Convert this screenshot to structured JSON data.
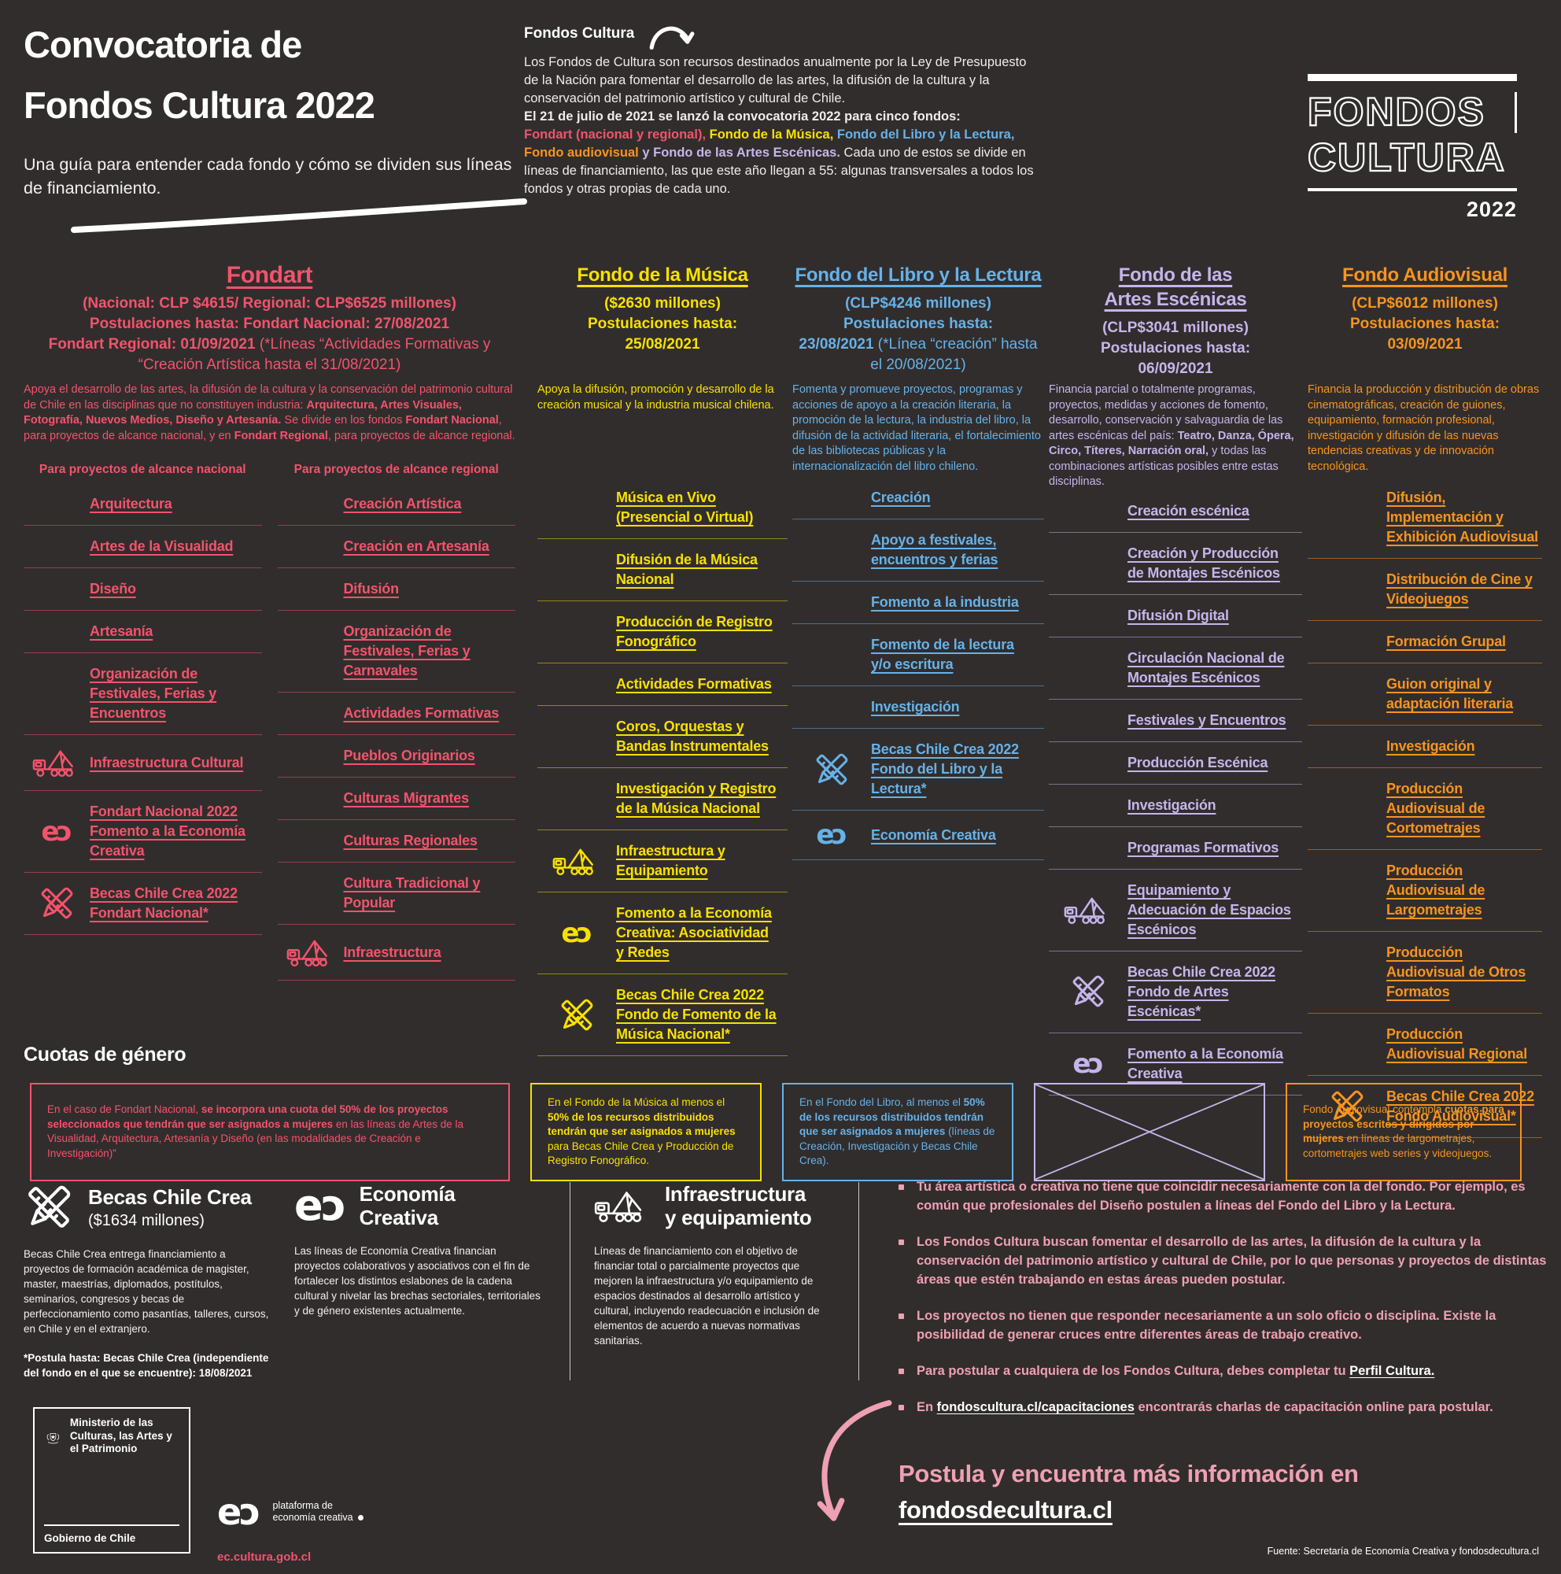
{
  "colors": {
    "background": "#312d2d",
    "fondart": "#f3536b",
    "musica": "#f8e100",
    "libro": "#66b2e8",
    "escenicas": "#c6b5ea",
    "audiovisual": "#f7941e",
    "accent_pink": "#efa0b2",
    "white": "#ffffff"
  },
  "page": {
    "title_line1": "Convocatoria de",
    "title_line2": "Fondos Cultura 2022",
    "subtitle": "Una guía para entender cada fondo y cómo se dividen sus líneas de financiamiento.",
    "intro_label": "Fondos Cultura",
    "intro_p1": "Los Fondos de Cultura son recursos destinados anualmente por la Ley de Presupuesto de la Nación para fomentar el desarrollo de las artes, la difusión de la cultura y la conservación del patrimonio artístico y cultural de Chile.",
    "intro_p2_bold": "El 21 de julio de 2021 se lanzó la convocatoria 2022 para cinco fondos:",
    "intro_fond_0": "Fondart (nacional y regional),",
    "intro_fond_1": "Fondo de la Música,",
    "intro_fond_2": "Fondo del Libro y la Lectura,",
    "intro_fond_3": "Fondo audiovisual",
    "intro_fond_4": "y Fondo de las Artes Escénicas.",
    "intro_p2_rest": "Cada uno de estos se divide en líneas de financiamiento, las que este año llegan a 55: algunas transversales a todos  los fondos y otras propias de cada uno.",
    "logo_line1": "FONDOS",
    "logo_line2": "CULTURA",
    "logo_year": "2022"
  },
  "funds": [
    {
      "name": "Fondart",
      "meta1": "(Nacional: CLP $4615/ Regional: CLP$6525 millones)",
      "meta2": "Postulaciones hasta: Fondart Nacional: 27/08/2021",
      "meta3": "Fondart Regional: 01/09/2021",
      "meta3_note": "(*Líneas “Actividades Formativas y “Creación Artística hasta el 31/08/2021)",
      "desc_p1": "Apoya el desarrollo de las artes, la difusión de la cultura y la conservación del patrimonio cultural de Chile en las disciplinas que no constituyen industria: ",
      "desc_b1": "Arquitectura, Artes Visuales, Fotografía, Nuevos Medios, Diseño y Artesanía.",
      "desc_p2": " Se divide en los fondos ",
      "desc_b2": "Fondart Nacional",
      "desc_p3": ", para proyectos de alcance nacional, y en ",
      "desc_b3": "Fondart Regional",
      "desc_p4": ", para proyectos de alcance regional.",
      "national_title": "Para proyectos de alcance nacional",
      "regional_title": "Para proyectos de alcance regional",
      "national_items": [
        {
          "label": "Arquitectura"
        },
        {
          "label": "Artes de la Visualidad"
        },
        {
          "label": "Diseño"
        },
        {
          "label": "Artesanía"
        },
        {
          "label": "Organización de Festivales, Ferias y Encuentros"
        },
        {
          "label": "Infraestructura Cultural",
          "icon": "crane-icon"
        },
        {
          "label": "Fondart Nacional 2022 Fomento a la Economía Creativa",
          "icon": "ec-icon"
        },
        {
          "label": "Becas Chile Crea 2022 Fondart Nacional*",
          "icon": "pencils-icon"
        }
      ],
      "regional_items": [
        {
          "label": "Creación Artística"
        },
        {
          "label": "Creación en Artesanía"
        },
        {
          "label": "Difusión"
        },
        {
          "label": "Organización de Festivales, Ferias y Carnavales"
        },
        {
          "label": "Actividades Formativas"
        },
        {
          "label": "Pueblos Originarios"
        },
        {
          "label": "Culturas Migrantes"
        },
        {
          "label": "Culturas Regionales"
        },
        {
          "label": "Cultura Tradicional y Popular"
        },
        {
          "label": "Infraestructura",
          "icon": "crane-icon"
        }
      ]
    },
    {
      "name": "Fondo de la Música",
      "meta1": "($2630 millones)",
      "meta2": "Postulaciones hasta:",
      "meta3": "25/08/2021",
      "desc": "Apoya la difusión, promoción y desarrollo de la creación musical y la industria musical chilena.",
      "items": [
        {
          "label": "Música en Vivo (Presencial o Virtual)"
        },
        {
          "label": "Difusión de la Música Nacional"
        },
        {
          "label": "Producción de Registro Fonográfico"
        },
        {
          "label": "Actividades Formativas"
        },
        {
          "label": "Coros, Orquestas y Bandas Instrumentales"
        },
        {
          "label": "Investigación y Registro de la Música Nacional"
        },
        {
          "label": "Infraestructura y Equipamiento",
          "icon": "crane-icon"
        },
        {
          "label": "Fomento a la Economía Creativa: Asociatividad y Redes",
          "icon": "ec-icon"
        },
        {
          "label": "Becas Chile Crea 2022 Fondo de Fomento de la Música Nacional*",
          "icon": "pencils-icon"
        }
      ]
    },
    {
      "name": "Fondo del Libro y la Lectura",
      "meta1": "(CLP$4246 millones)",
      "meta2": "Postulaciones hasta:",
      "meta3": "23/08/2021",
      "meta3_note": "(*Línea “creación” hasta el 20/08/2021)",
      "desc": "Fomenta y promueve proyectos, programas y acciones de apoyo a la creación literaria, la promoción de la lectura, la industria del libro, la difusión de la actividad literaria, el fortalecimiento de las bibliotecas públicas y la internacionalización del libro chileno.",
      "items": [
        {
          "label": "Creación"
        },
        {
          "label": "Apoyo a festivales, encuentros y ferias"
        },
        {
          "label": "Fomento a la industria"
        },
        {
          "label": "Fomento de la lectura y/o escritura"
        },
        {
          "label": "Investigación"
        },
        {
          "label": "Becas Chile Crea 2022 Fondo del Libro y la Lectura*",
          "icon": "pencils-icon"
        },
        {
          "label": "Economía Creativa",
          "icon": "ec-icon"
        }
      ]
    },
    {
      "name_line1": "Fondo de las",
      "name_line2": "Artes Escénicas",
      "meta1": "(CLP$3041 millones)",
      "meta2": "Postulaciones hasta:",
      "meta3": "06/09/2021",
      "desc_p1": "Financia parcial o totalmente programas, proyectos, medidas y acciones de fomento, desarrollo, conservación y salvaguardia de las artes escénicas del país: ",
      "desc_b1": "Teatro, Danza, Ópera, Circo, Títeres, Narración oral,",
      "desc_p2": " y todas las combinaciones artísticas posibles entre estas disciplinas.",
      "items": [
        {
          "label": "Creación escénica"
        },
        {
          "label": "Creación y Producción de Montajes Escénicos"
        },
        {
          "label": "Difusión Digital"
        },
        {
          "label": "Circulación Nacional de Montajes Escénicos"
        },
        {
          "label": "Festivales y Encuentros"
        },
        {
          "label": "Producción Escénica"
        },
        {
          "label": "Investigación"
        },
        {
          "label": "Programas Formativos"
        },
        {
          "label": "Equipamiento y Adecuación de Espacios Escénicos",
          "icon": "crane-icon"
        },
        {
          "label": "Becas Chile Crea 2022 Fondo de Artes Escénicas*",
          "icon": "pencils-icon"
        },
        {
          "label": "Fomento a la Economía Creativa",
          "icon": "ec-icon"
        }
      ]
    },
    {
      "name": "Fondo Audiovisual",
      "meta1": "(CLP$6012 millones)",
      "meta2": "Postulaciones hasta:",
      "meta3": "03/09/2021",
      "desc": "Financia la producción y distribución de obras cinematográficas, creación de guiones, equipamiento, formación profesional, investigación y difusión de las nuevas tendencias creativas y de innovación tecnológica.",
      "items": [
        {
          "label": "Difusión, Implementación y Exhibición Audiovisual"
        },
        {
          "label": "Distribución de Cine y Videojuegos"
        },
        {
          "label": "Formación Grupal"
        },
        {
          "label": "Guion original y adaptación literaria"
        },
        {
          "label": "Investigación"
        },
        {
          "label": "Producción Audiovisual de Cortometrajes"
        },
        {
          "label": "Producción Audiovisual de Largometrajes"
        },
        {
          "label": "Producción Audiovisual de Otros Formatos"
        },
        {
          "label": "Producción Audiovisual Regional"
        },
        {
          "label": "Becas Chile Crea 2022 Fondo Audiovisual*",
          "icon": "pencils-icon"
        }
      ]
    }
  ],
  "cuotas": {
    "title": "Cuotas de género",
    "boxes": [
      {
        "pre": "En el caso de Fondart Nacional, ",
        "bold": "se incorpora una cuota del 50% de los proyectos seleccionados que tendrán que ser asignados a mujeres ",
        "post": "en las líneas de Artes de la Visualidad, Arquitectura, Artesanía y Diseño (en las modalidades de Creación e Investigación)”"
      },
      {
        "pre": "En el Fondo de la Música al menos el ",
        "bold": "50% de los recursos distribuidos tendrán que ser asignados a mujeres ",
        "post": "para Becas Chile Crea y Producción de Registro Fonográfico."
      },
      {
        "pre": "En el Fondo del Libro, al menos el ",
        "bold": "50% de los recursos distribuidos tendrán que ser asignados a mujeres ",
        "post": "(líneas de Creación, Investigación y Becas Chile Crea)."
      },
      {
        "empty": true,
        "icon": "crossed-lines-icon"
      },
      {
        "pre": "Fondo Audiovisual contempla ",
        "bold": "cuotas para proyectos escritos y dirigidos por mujeres ",
        "post": "en líneas de largometrajes, cortometrajes web series y videojuegos."
      }
    ]
  },
  "glossary": {
    "terms": [
      {
        "icon": "pencils-icon",
        "title": "Becas Chile Crea",
        "subtitle": "($1634 millones)",
        "desc": "Becas Chile Crea entrega financiamiento a proyectos de formación académica de magister, master, maestrías, diplomados, postítulos, seminarios, congresos y becas de perfeccionamiento como pasantías, talleres, cursos, en Chile y en el extranjero.",
        "note": "*Postula hasta: Becas Chile Crea (independiente del fondo en el que se encuentre): 18/08/2021"
      },
      {
        "icon": "ec-icon",
        "title": "Economía Creativa",
        "desc": "Las líneas de Economía Creativa financian proyectos colaborativos y asociativos con el fin de fortalecer los distintos eslabones de la cadena cultural y nivelar las brechas sectoriales, territoriales y de género existentes actualmente."
      },
      {
        "icon": "crane-icon",
        "title": "Infraestructura y equipamiento",
        "desc": "Líneas de financiamiento con el objetivo de financiar total o parcialmente proyectos que mejoren la infraestructura y/o equipamiento de espacios destinados al desarrollo artístico y cultural, incluyendo readecuación  e inclusión de elementos de acuerdo a nuevas normativas sanitarias."
      }
    ]
  },
  "tips": {
    "items": [
      {
        "text": "Tu área artística o creativa no tiene que coincidir necesariamente con la del fondo. Por ejemplo, es común que profesionales del Diseño postulen a líneas del Fondo del Libro y la Lectura."
      },
      {
        "text": "Los Fondos Cultura buscan fomentar el desarrollo de las artes, la difusión de la cultura y la conservación del patrimonio artístico y cultural de Chile, por lo que personas y proyectos de distintas áreas que estén trabajando en estas áreas pueden postular."
      },
      {
        "text": "Los proyectos no tienen que responder necesariamente a un solo oficio o disciplina. Existe la posibilidad de generar cruces entre diferentes áreas de trabajo creativo."
      },
      {
        "pre": "Para postular a cualquiera de los Fondos Cultura, debes completar tu ",
        "link": "Perfil Cultura."
      },
      {
        "pre": "En ",
        "link": "fondoscultura.cl/capacitaciones",
        "post": " encontrarás charlas de capacitación online para postular."
      }
    ]
  },
  "cta": {
    "line1": "Postula y encuentra más información en",
    "line2": "fondosdecultura.cl"
  },
  "footer": {
    "ministry_name": "Ministerio de las Culturas, las Artes y el Patrimonio",
    "ministry_gov": "Gobierno de Chile",
    "ec_label": "plataforma de economía creativa",
    "ec_url": "ec.cultura.gob.cl",
    "source": "Fuente: Secretaría de Economía Creativa y fondosdecultura.cl"
  }
}
